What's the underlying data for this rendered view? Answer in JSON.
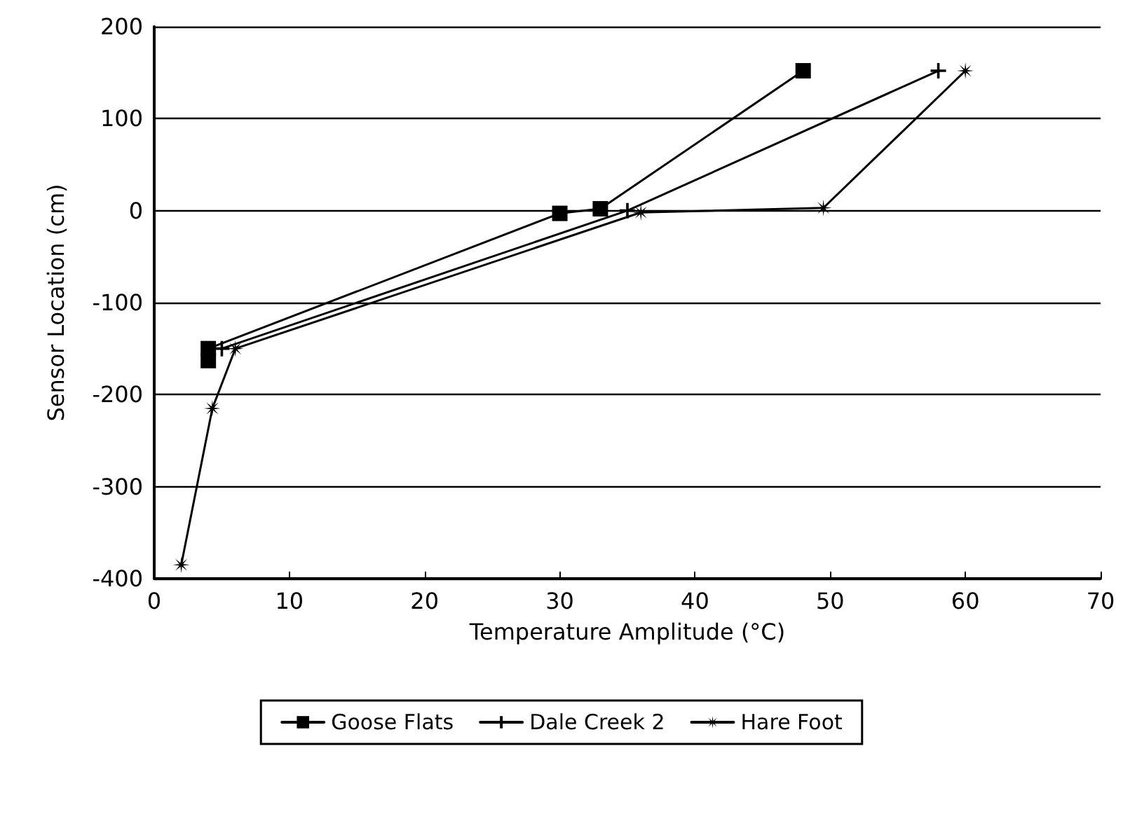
{
  "chart_data": {
    "type": "line",
    "xlabel": "Temperature Amplitude (°C)",
    "ylabel": "Sensor Location (cm)",
    "xlim": [
      0,
      70
    ],
    "xticks": [
      0,
      10,
      20,
      30,
      40,
      50,
      60,
      70
    ],
    "ylim": [
      -400,
      200
    ],
    "yticks": [
      -400,
      -300,
      -200,
      -100,
      0,
      100,
      200
    ],
    "grid": "y",
    "legend": "bottom",
    "series": [
      {
        "name": "Goose Flats",
        "color": "#000000",
        "marker": "square",
        "x": [
          4,
          4,
          30,
          33,
          48
        ],
        "values": [
          -163,
          -150,
          -3,
          2,
          152
        ]
      },
      {
        "name": "Dale Creek 2",
        "color": "#000000",
        "marker": "cross",
        "x": [
          5,
          35,
          58
        ],
        "values": [
          -150,
          0,
          152
        ]
      },
      {
        "name": "Hare Foot",
        "color": "#000000",
        "marker": "star",
        "x": [
          2,
          4.3,
          6,
          36,
          49.5,
          60
        ],
        "values": [
          -385,
          -215,
          -150,
          -2,
          3,
          152
        ]
      }
    ]
  }
}
